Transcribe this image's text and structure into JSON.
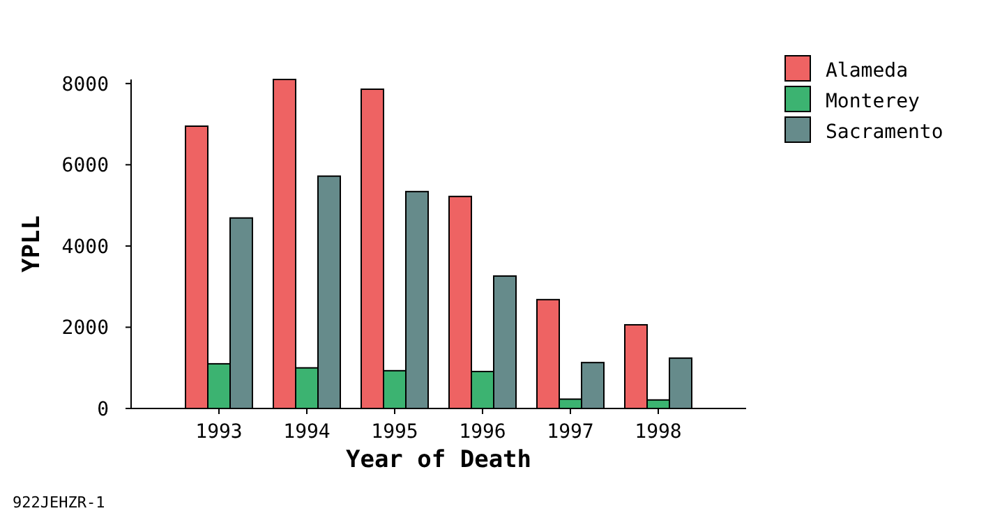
{
  "chart_data": {
    "type": "bar",
    "xlabel": "Year of Death",
    "ylabel": "YPLL",
    "categories": [
      "1993",
      "1994",
      "1995",
      "1996",
      "1997",
      "1998"
    ],
    "series": [
      {
        "name": "Alameda",
        "color": "#ee6363",
        "values": [
          6950,
          8100,
          7860,
          5220,
          2680,
          2060
        ]
      },
      {
        "name": "Monterey",
        "color": "#3cb371",
        "values": [
          1100,
          1000,
          930,
          910,
          230,
          210
        ]
      },
      {
        "name": "Sacramento",
        "color": "#668b8b",
        "values": [
          4690,
          5720,
          5340,
          3260,
          1130,
          1240
        ]
      }
    ],
    "ylim": [
      0,
      8100
    ],
    "yticks": [
      0,
      2000,
      4000,
      6000,
      8000
    ],
    "grid": false,
    "legend": "top right",
    "annotations": [
      "922JEHZR-1"
    ]
  }
}
